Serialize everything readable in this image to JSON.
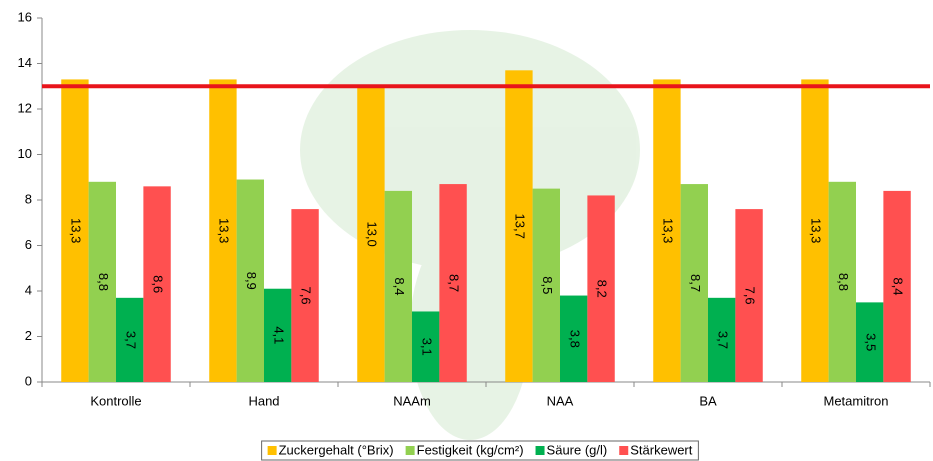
{
  "chart_data": {
    "type": "bar",
    "categories": [
      "Kontrolle",
      "Hand",
      "NAAm",
      "NAA",
      "BA",
      "Metamitron"
    ],
    "series": [
      {
        "name": "Zuckergehalt (°Brix)",
        "color": "#ffc000",
        "values": [
          13.3,
          13.3,
          13.0,
          13.7,
          13.3,
          13.3
        ],
        "value_labels": [
          "13,3",
          "13,3",
          "13,0",
          "13,7",
          "13,3",
          "13,3"
        ]
      },
      {
        "name": "Festigkeit (kg/cm²)",
        "color": "#92d050",
        "values": [
          8.8,
          8.9,
          8.4,
          8.5,
          8.7,
          8.8
        ],
        "value_labels": [
          "8,8",
          "8,9",
          "8,4",
          "8,5",
          "8,7",
          "8,8"
        ]
      },
      {
        "name": "Säure (g/l)",
        "color": "#00b050",
        "values": [
          3.7,
          4.1,
          3.1,
          3.8,
          3.7,
          3.5
        ],
        "value_labels": [
          "3,7",
          "4,1",
          "3,1",
          "3,8",
          "3,7",
          "3,5"
        ]
      },
      {
        "name": "Stärkewert",
        "color": "#ff5050",
        "values": [
          8.6,
          7.6,
          8.7,
          8.2,
          7.6,
          8.4
        ],
        "value_labels": [
          "8,6",
          "7,6",
          "8,7",
          "8,2",
          "7,6",
          "8,4"
        ]
      }
    ],
    "ylim": [
      0,
      16
    ],
    "yticks": [
      0,
      2,
      4,
      6,
      8,
      10,
      12,
      14,
      16
    ],
    "reference_line": {
      "value": 13,
      "color": "#e8141b"
    },
    "legend": "bottom"
  }
}
